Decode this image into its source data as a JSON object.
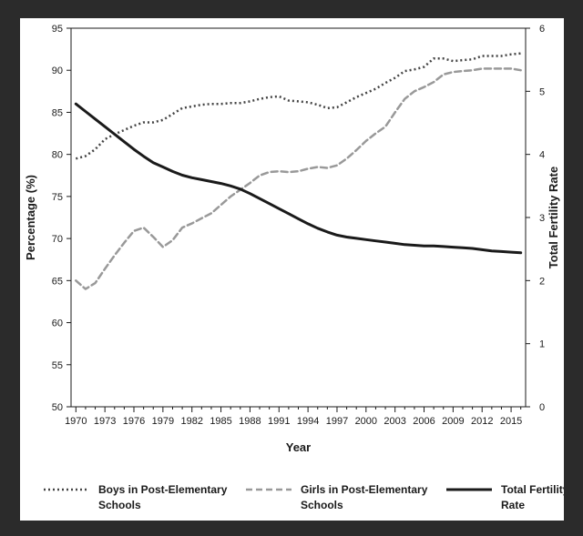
{
  "chart_data": {
    "type": "line",
    "xlabel": "Year",
    "ylabel_left": "Percentage (%)",
    "ylabel_right": "Total Fertility Rate",
    "x_ticks": [
      1970,
      1973,
      1976,
      1979,
      1982,
      1985,
      1988,
      1991,
      1994,
      1997,
      2000,
      2003,
      2006,
      2009,
      2012,
      2015
    ],
    "ylim_left": [
      50,
      95
    ],
    "yticks_left": [
      50,
      55,
      60,
      65,
      70,
      75,
      80,
      85,
      90,
      95
    ],
    "ylim_right": [
      0,
      6
    ],
    "yticks_right": [
      0,
      1,
      2,
      3,
      4,
      5,
      6
    ],
    "legend_position": "bottom",
    "series": [
      {
        "name": "Boys in Post-Elementary Schools",
        "axis": "left",
        "style": "dotted",
        "color": "#444444",
        "x": [
          1970,
          1971,
          1972,
          1973,
          1974,
          1975,
          1976,
          1977,
          1978,
          1979,
          1980,
          1981,
          1982,
          1983,
          1984,
          1985,
          1986,
          1987,
          1988,
          1989,
          1990,
          1991,
          1992,
          1993,
          1994,
          1995,
          1996,
          1997,
          1998,
          1999,
          2000,
          2001,
          2002,
          2003,
          2004,
          2005,
          2006,
          2007,
          2008,
          2009,
          2010,
          2011,
          2012,
          2013,
          2014,
          2015,
          2016
        ],
        "values": [
          79.5,
          79.8,
          80.6,
          81.8,
          82.4,
          82.9,
          83.4,
          83.8,
          83.8,
          84.1,
          84.8,
          85.5,
          85.7,
          85.9,
          86.0,
          86.0,
          86.1,
          86.1,
          86.3,
          86.6,
          86.8,
          86.9,
          86.4,
          86.3,
          86.2,
          85.9,
          85.5,
          85.6,
          86.2,
          86.8,
          87.3,
          87.8,
          88.5,
          89.1,
          89.9,
          90.1,
          90.4,
          91.4,
          91.4,
          91.1,
          91.2,
          91.3,
          91.7,
          91.7,
          91.7,
          91.9,
          92.0
        ]
      },
      {
        "name": "Girls in Post-Elementary Schools",
        "axis": "left",
        "style": "dashed",
        "color": "#999999",
        "x": [
          1970,
          1971,
          1972,
          1973,
          1974,
          1975,
          1976,
          1977,
          1978,
          1979,
          1980,
          1981,
          1982,
          1983,
          1984,
          1985,
          1986,
          1987,
          1988,
          1989,
          1990,
          1991,
          1992,
          1993,
          1994,
          1995,
          1996,
          1997,
          1998,
          1999,
          2000,
          2001,
          2002,
          2003,
          2004,
          2005,
          2006,
          2007,
          2008,
          2009,
          2010,
          2011,
          2012,
          2013,
          2014,
          2015,
          2016
        ],
        "values": [
          65.0,
          64.0,
          64.7,
          66.4,
          68.0,
          69.5,
          70.9,
          71.3,
          70.2,
          69.0,
          69.8,
          71.3,
          71.8,
          72.4,
          73.0,
          74.0,
          75.0,
          75.8,
          76.6,
          77.5,
          77.9,
          78.0,
          77.9,
          78.0,
          78.3,
          78.5,
          78.4,
          78.7,
          79.5,
          80.5,
          81.6,
          82.5,
          83.3,
          85.0,
          86.6,
          87.5,
          88.0,
          88.6,
          89.5,
          89.8,
          89.9,
          90.0,
          90.2,
          90.2,
          90.2,
          90.2,
          90.0
        ]
      },
      {
        "name": "Total Fertility Rate",
        "axis": "right",
        "style": "solid",
        "color": "#1a1a1a",
        "x": [
          1970,
          1971,
          1972,
          1973,
          1974,
          1975,
          1976,
          1977,
          1978,
          1979,
          1980,
          1981,
          1982,
          1983,
          1984,
          1985,
          1986,
          1987,
          1988,
          1989,
          1990,
          1991,
          1992,
          1993,
          1994,
          1995,
          1996,
          1997,
          1998,
          1999,
          2000,
          2001,
          2002,
          2003,
          2004,
          2005,
          2006,
          2007,
          2008,
          2009,
          2010,
          2011,
          2012,
          2013,
          2014,
          2015,
          2016
        ],
        "values": [
          4.8,
          4.68,
          4.56,
          4.44,
          4.32,
          4.2,
          4.08,
          3.97,
          3.87,
          3.8,
          3.73,
          3.67,
          3.63,
          3.6,
          3.57,
          3.54,
          3.5,
          3.45,
          3.38,
          3.3,
          3.22,
          3.14,
          3.06,
          2.98,
          2.9,
          2.83,
          2.77,
          2.72,
          2.69,
          2.67,
          2.65,
          2.63,
          2.61,
          2.59,
          2.57,
          2.56,
          2.55,
          2.55,
          2.54,
          2.53,
          2.52,
          2.51,
          2.49,
          2.47,
          2.46,
          2.45,
          2.44
        ]
      }
    ],
    "legend": [
      {
        "lines": [
          "Boys in Post-Elementary",
          "Schools"
        ],
        "style": "dotted",
        "color": "#444444"
      },
      {
        "lines": [
          "Girls in Post-Elementary",
          "Schools"
        ],
        "style": "dashed",
        "color": "#999999"
      },
      {
        "lines": [
          "Total Fertility",
          "Rate"
        ],
        "style": "solid",
        "color": "#1a1a1a"
      }
    ]
  }
}
